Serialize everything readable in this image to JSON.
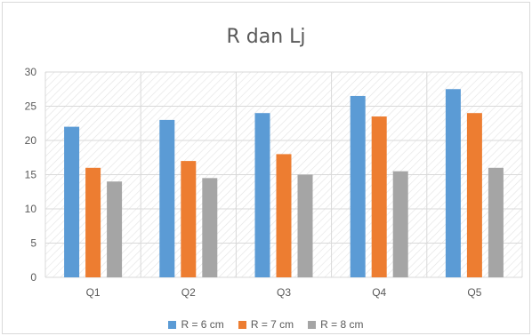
{
  "chart_data": {
    "type": "bar",
    "title": "R dan Lj",
    "categories": [
      "Q1",
      "Q2",
      "Q3",
      "Q4",
      "Q5"
    ],
    "series": [
      {
        "name": "R = 6 cm",
        "color": "#5b9bd5",
        "values": [
          22,
          23,
          24,
          26.5,
          27.5
        ]
      },
      {
        "name": "R = 7 cm",
        "color": "#ed7d31",
        "values": [
          16,
          17,
          18,
          23.5,
          24
        ]
      },
      {
        "name": "R = 8 cm",
        "color": "#a5a5a5",
        "values": [
          14,
          14.5,
          15,
          15.5,
          16
        ]
      }
    ],
    "ylim": [
      0,
      30
    ],
    "yticks": [
      "0",
      "5",
      "10",
      "15",
      "20",
      "25",
      "30"
    ],
    "grid": true,
    "legend_position": "bottom",
    "xlabel": "",
    "ylabel": ""
  }
}
